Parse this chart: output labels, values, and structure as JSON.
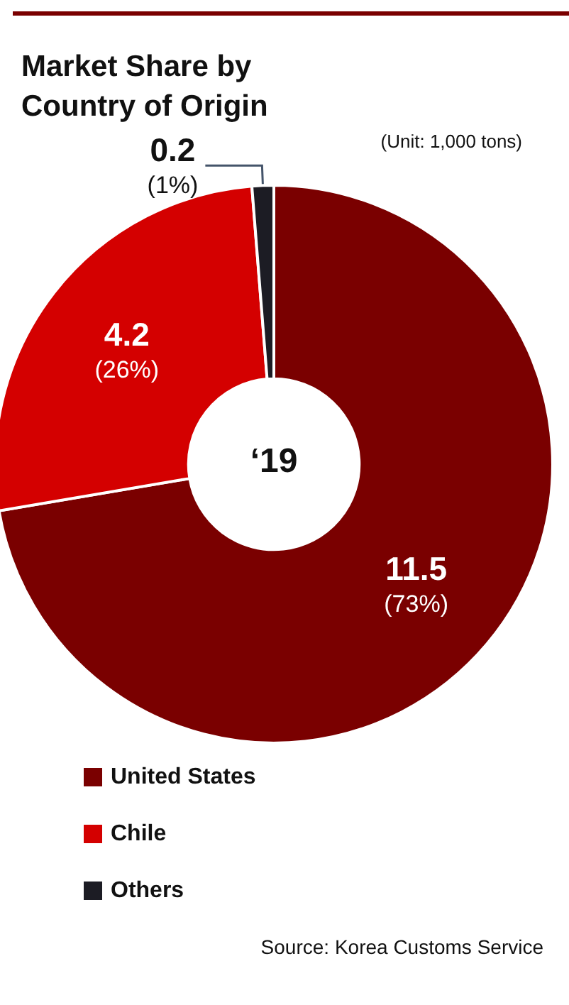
{
  "chart_data": {
    "type": "donut",
    "title": "Market Share by\nCountry of Origin",
    "subtitle": "(Unit: 1,000 tons)",
    "categories": [
      "United States",
      "Chile",
      "Others"
    ],
    "values": [
      11.5,
      4.2,
      0.2
    ],
    "colors": [
      "#7a0000",
      "#d40000",
      "#1c1c24"
    ],
    "value_labels": [
      "11.5\n(73%)",
      "4.2\n(26%)",
      "0.2\n(1%)"
    ],
    "annotations": [
      "‘19",
      "Source: Korea Customs Service"
    ],
    "legend": "bottom left"
  }
}
